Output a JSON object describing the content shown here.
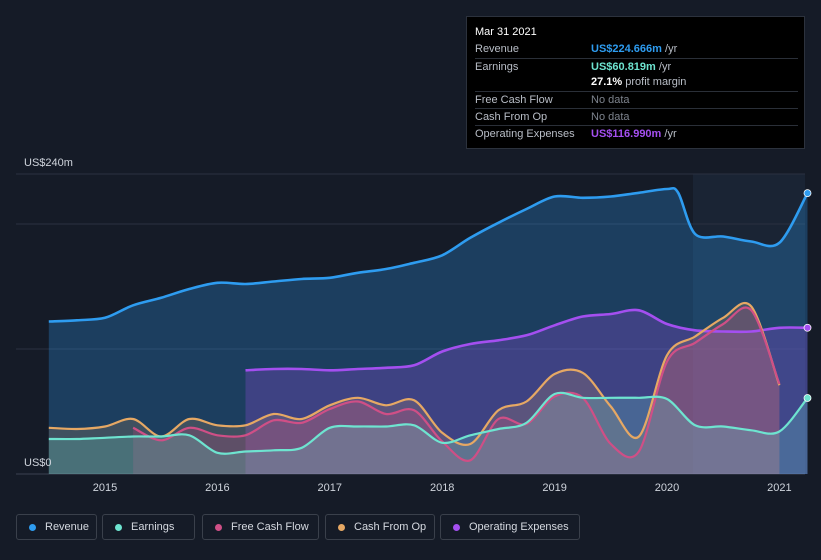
{
  "tooltip": {
    "date": "Mar 31 2021",
    "revenue_label": "Revenue",
    "revenue_value": "US$224.666m",
    "earnings_label": "Earnings",
    "earnings_value": "US$60.819m",
    "margin_value": "27.1%",
    "margin_label": "profit margin",
    "fcf_label": "Free Cash Flow",
    "fcf_value": "No data",
    "cfo_label": "Cash From Op",
    "cfo_value": "No data",
    "opex_label": "Operating Expenses",
    "opex_value": "US$116.990m",
    "unit": "/yr"
  },
  "legend": [
    {
      "label": "Revenue",
      "color": "#2e9cf0"
    },
    {
      "label": "Earnings",
      "color": "#6ee4d0"
    },
    {
      "label": "Free Cash Flow",
      "color": "#cf4f86"
    },
    {
      "label": "Cash From Op",
      "color": "#e6a864"
    },
    {
      "label": "Operating Expenses",
      "color": "#a44ff0"
    }
  ],
  "chart_data": {
    "type": "area",
    "y_top_label": "US$240m",
    "y_bottom_label": "US$0",
    "ylim": [
      0,
      240
    ],
    "xlim": [
      2014.5,
      2021.25
    ],
    "x_ticks": [
      "2015",
      "2016",
      "2017",
      "2018",
      "2019",
      "2020",
      "2021"
    ],
    "series": [
      {
        "name": "Revenue",
        "color": "#2e9cf0",
        "points": [
          [
            2014.5,
            122
          ],
          [
            2014.75,
            123
          ],
          [
            2015,
            125
          ],
          [
            2015.25,
            135
          ],
          [
            2015.5,
            141
          ],
          [
            2015.75,
            148
          ],
          [
            2016,
            153
          ],
          [
            2016.25,
            152
          ],
          [
            2016.5,
            154
          ],
          [
            2016.75,
            156
          ],
          [
            2017,
            157
          ],
          [
            2017.25,
            161
          ],
          [
            2017.5,
            164
          ],
          [
            2017.75,
            169
          ],
          [
            2018,
            175
          ],
          [
            2018.25,
            189
          ],
          [
            2018.5,
            201
          ],
          [
            2018.75,
            212
          ],
          [
            2019,
            222
          ],
          [
            2019.25,
            221
          ],
          [
            2019.5,
            222
          ],
          [
            2019.75,
            225
          ],
          [
            2020,
            228
          ],
          [
            2020.1,
            225
          ],
          [
            2020.25,
            192
          ],
          [
            2020.5,
            190
          ],
          [
            2020.75,
            186
          ],
          [
            2021,
            185
          ],
          [
            2021.25,
            224.7
          ]
        ]
      },
      {
        "name": "Earnings",
        "color": "#6ee4d0",
        "points": [
          [
            2014.5,
            28
          ],
          [
            2014.75,
            28
          ],
          [
            2015,
            29
          ],
          [
            2015.25,
            30
          ],
          [
            2015.5,
            30
          ],
          [
            2015.75,
            31
          ],
          [
            2016,
            17
          ],
          [
            2016.25,
            18
          ],
          [
            2016.5,
            19
          ],
          [
            2016.75,
            21
          ],
          [
            2017,
            37
          ],
          [
            2017.25,
            38
          ],
          [
            2017.5,
            38
          ],
          [
            2017.75,
            39
          ],
          [
            2018,
            25
          ],
          [
            2018.25,
            31
          ],
          [
            2018.5,
            36
          ],
          [
            2018.75,
            41
          ],
          [
            2019,
            64
          ],
          [
            2019.25,
            61
          ],
          [
            2019.5,
            61
          ],
          [
            2019.75,
            61
          ],
          [
            2020,
            60
          ],
          [
            2020.25,
            39
          ],
          [
            2020.5,
            38
          ],
          [
            2020.75,
            35
          ],
          [
            2021,
            34
          ],
          [
            2021.25,
            60.8
          ]
        ]
      },
      {
        "name": "Free Cash Flow",
        "color": "#cf4f86",
        "points": [
          [
            2015.25,
            37
          ],
          [
            2015.5,
            27
          ],
          [
            2015.75,
            37
          ],
          [
            2016,
            31
          ],
          [
            2016.25,
            31
          ],
          [
            2016.5,
            43
          ],
          [
            2016.75,
            41
          ],
          [
            2017,
            52
          ],
          [
            2017.25,
            58
          ],
          [
            2017.5,
            48
          ],
          [
            2017.75,
            51
          ],
          [
            2018,
            26
          ],
          [
            2018.25,
            11
          ],
          [
            2018.5,
            44
          ],
          [
            2018.75,
            40
          ],
          [
            2019,
            62
          ],
          [
            2019.25,
            61
          ],
          [
            2019.5,
            24
          ],
          [
            2019.75,
            18
          ],
          [
            2020,
            90
          ],
          [
            2020.25,
            105
          ],
          [
            2020.5,
            120
          ],
          [
            2020.75,
            131
          ],
          [
            2021,
            72
          ]
        ]
      },
      {
        "name": "Cash From Op",
        "color": "#e6a864",
        "points": [
          [
            2014.5,
            37
          ],
          [
            2014.75,
            36
          ],
          [
            2015,
            38
          ],
          [
            2015.25,
            44
          ],
          [
            2015.5,
            30
          ],
          [
            2015.75,
            44
          ],
          [
            2016,
            39
          ],
          [
            2016.25,
            39
          ],
          [
            2016.5,
            48
          ],
          [
            2016.75,
            44
          ],
          [
            2017,
            55
          ],
          [
            2017.25,
            61
          ],
          [
            2017.5,
            55
          ],
          [
            2017.75,
            59
          ],
          [
            2018,
            33
          ],
          [
            2018.25,
            24
          ],
          [
            2018.5,
            51
          ],
          [
            2018.75,
            58
          ],
          [
            2019,
            80
          ],
          [
            2019.25,
            81
          ],
          [
            2019.5,
            54
          ],
          [
            2019.75,
            30
          ],
          [
            2020,
            95
          ],
          [
            2020.25,
            110
          ],
          [
            2020.5,
            125
          ],
          [
            2020.75,
            134
          ],
          [
            2021,
            71
          ]
        ]
      },
      {
        "name": "Operating Expenses",
        "color": "#a44ff0",
        "points": [
          [
            2016.25,
            83
          ],
          [
            2016.5,
            84
          ],
          [
            2016.75,
            84
          ],
          [
            2017,
            83
          ],
          [
            2017.25,
            84
          ],
          [
            2017.5,
            85
          ],
          [
            2017.75,
            87
          ],
          [
            2018,
            98
          ],
          [
            2018.25,
            104
          ],
          [
            2018.5,
            107
          ],
          [
            2018.75,
            111
          ],
          [
            2019,
            119
          ],
          [
            2019.25,
            126
          ],
          [
            2019.5,
            128
          ],
          [
            2019.75,
            131
          ],
          [
            2020,
            120
          ],
          [
            2020.25,
            115
          ],
          [
            2020.5,
            114
          ],
          [
            2020.75,
            114
          ],
          [
            2021,
            117
          ],
          [
            2021.25,
            117
          ]
        ]
      }
    ]
  }
}
